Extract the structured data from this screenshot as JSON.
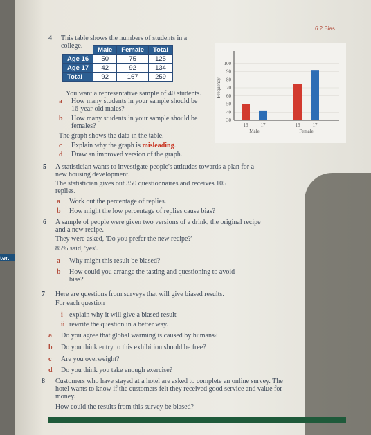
{
  "header": {
    "section": "6.2 Bias"
  },
  "q4": {
    "number": "4",
    "intro": "This table shows the numbers of students in a college.",
    "table": {
      "header": [
        "Male",
        "Female",
        "Total"
      ],
      "rows": [
        [
          "Age 16",
          50,
          75,
          125
        ],
        [
          "Age 17",
          42,
          92,
          134
        ],
        [
          "Total",
          92,
          167,
          259
        ]
      ]
    },
    "sample": "You want a representative sample of 40 students.",
    "parts": [
      {
        "label": "a",
        "text": "How many students in your sample should be 16-year-old males?"
      },
      {
        "label": "b",
        "text": "How many students in your sample should be females?"
      }
    ],
    "graph_note": "The graph shows the data in the table.",
    "c": {
      "label": "c",
      "text": "Explain why the graph is",
      "highlight": "misleading",
      "end": "."
    },
    "d": {
      "label": "d",
      "text": "Draw an improved version of the graph."
    }
  },
  "chart_data": {
    "type": "bar",
    "y_label": "Frequency",
    "categories": [
      "16",
      "17",
      "16",
      "17"
    ],
    "groups": [
      "Male",
      "Female"
    ],
    "values": [
      50,
      42,
      75,
      92
    ],
    "colors": [
      "#d23a2e",
      "#2c6db5",
      "#d23a2e",
      "#2c6db5"
    ],
    "ylim": [
      30,
      110
    ],
    "yticks": [
      30,
      40,
      50,
      60,
      70,
      80,
      90,
      100
    ],
    "grid": true
  },
  "q5": {
    "number": "5",
    "lines": [
      "A statistician wants to investigate people's attitudes towards a plan for a new housing development.",
      "The statistician gives out 350 questionnaires and receives 105 replies."
    ],
    "parts": [
      {
        "label": "a",
        "text": "Work out the percentage of replies."
      },
      {
        "label": "b",
        "text": "How might the low percentage of replies cause bias?"
      }
    ]
  },
  "q6": {
    "number": "6",
    "lines": [
      "A sample of people were given two versions of a drink, the original recipe and a new recipe.",
      "They were asked, 'Do you prefer the new recipe?'",
      "85% said, 'yes'."
    ],
    "parts": [
      {
        "label": "a",
        "text": "Why might this result be biased?"
      },
      {
        "label": "b",
        "text": "How could you arrange the tasting and questioning to avoid bias?"
      }
    ]
  },
  "q7": {
    "number": "7",
    "lines": [
      "Here are questions from surveys that will give biased results.",
      "For each question"
    ],
    "steps": [
      {
        "label": "i",
        "text": "explain why it will give a biased result"
      },
      {
        "label": "ii",
        "text": "rewrite the question in a better way."
      }
    ],
    "parts": [
      {
        "label": "a",
        "text": "Do you agree that global warming is caused by humans?"
      },
      {
        "label": "b",
        "text": "Do you think entry to this exhibition should be free?"
      },
      {
        "label": "c",
        "text": "Are you overweight?"
      },
      {
        "label": "d",
        "text": "Do you think you take enough exercise?"
      }
    ]
  },
  "q8": {
    "number": "8",
    "lines": [
      "Customers who have stayed at a hotel are asked to complete an online survey. The hotel wants to know if the customers felt they received good service and value for money.",
      "How could the results from this survey be biased?"
    ]
  },
  "margin": {
    "text": "ter."
  }
}
